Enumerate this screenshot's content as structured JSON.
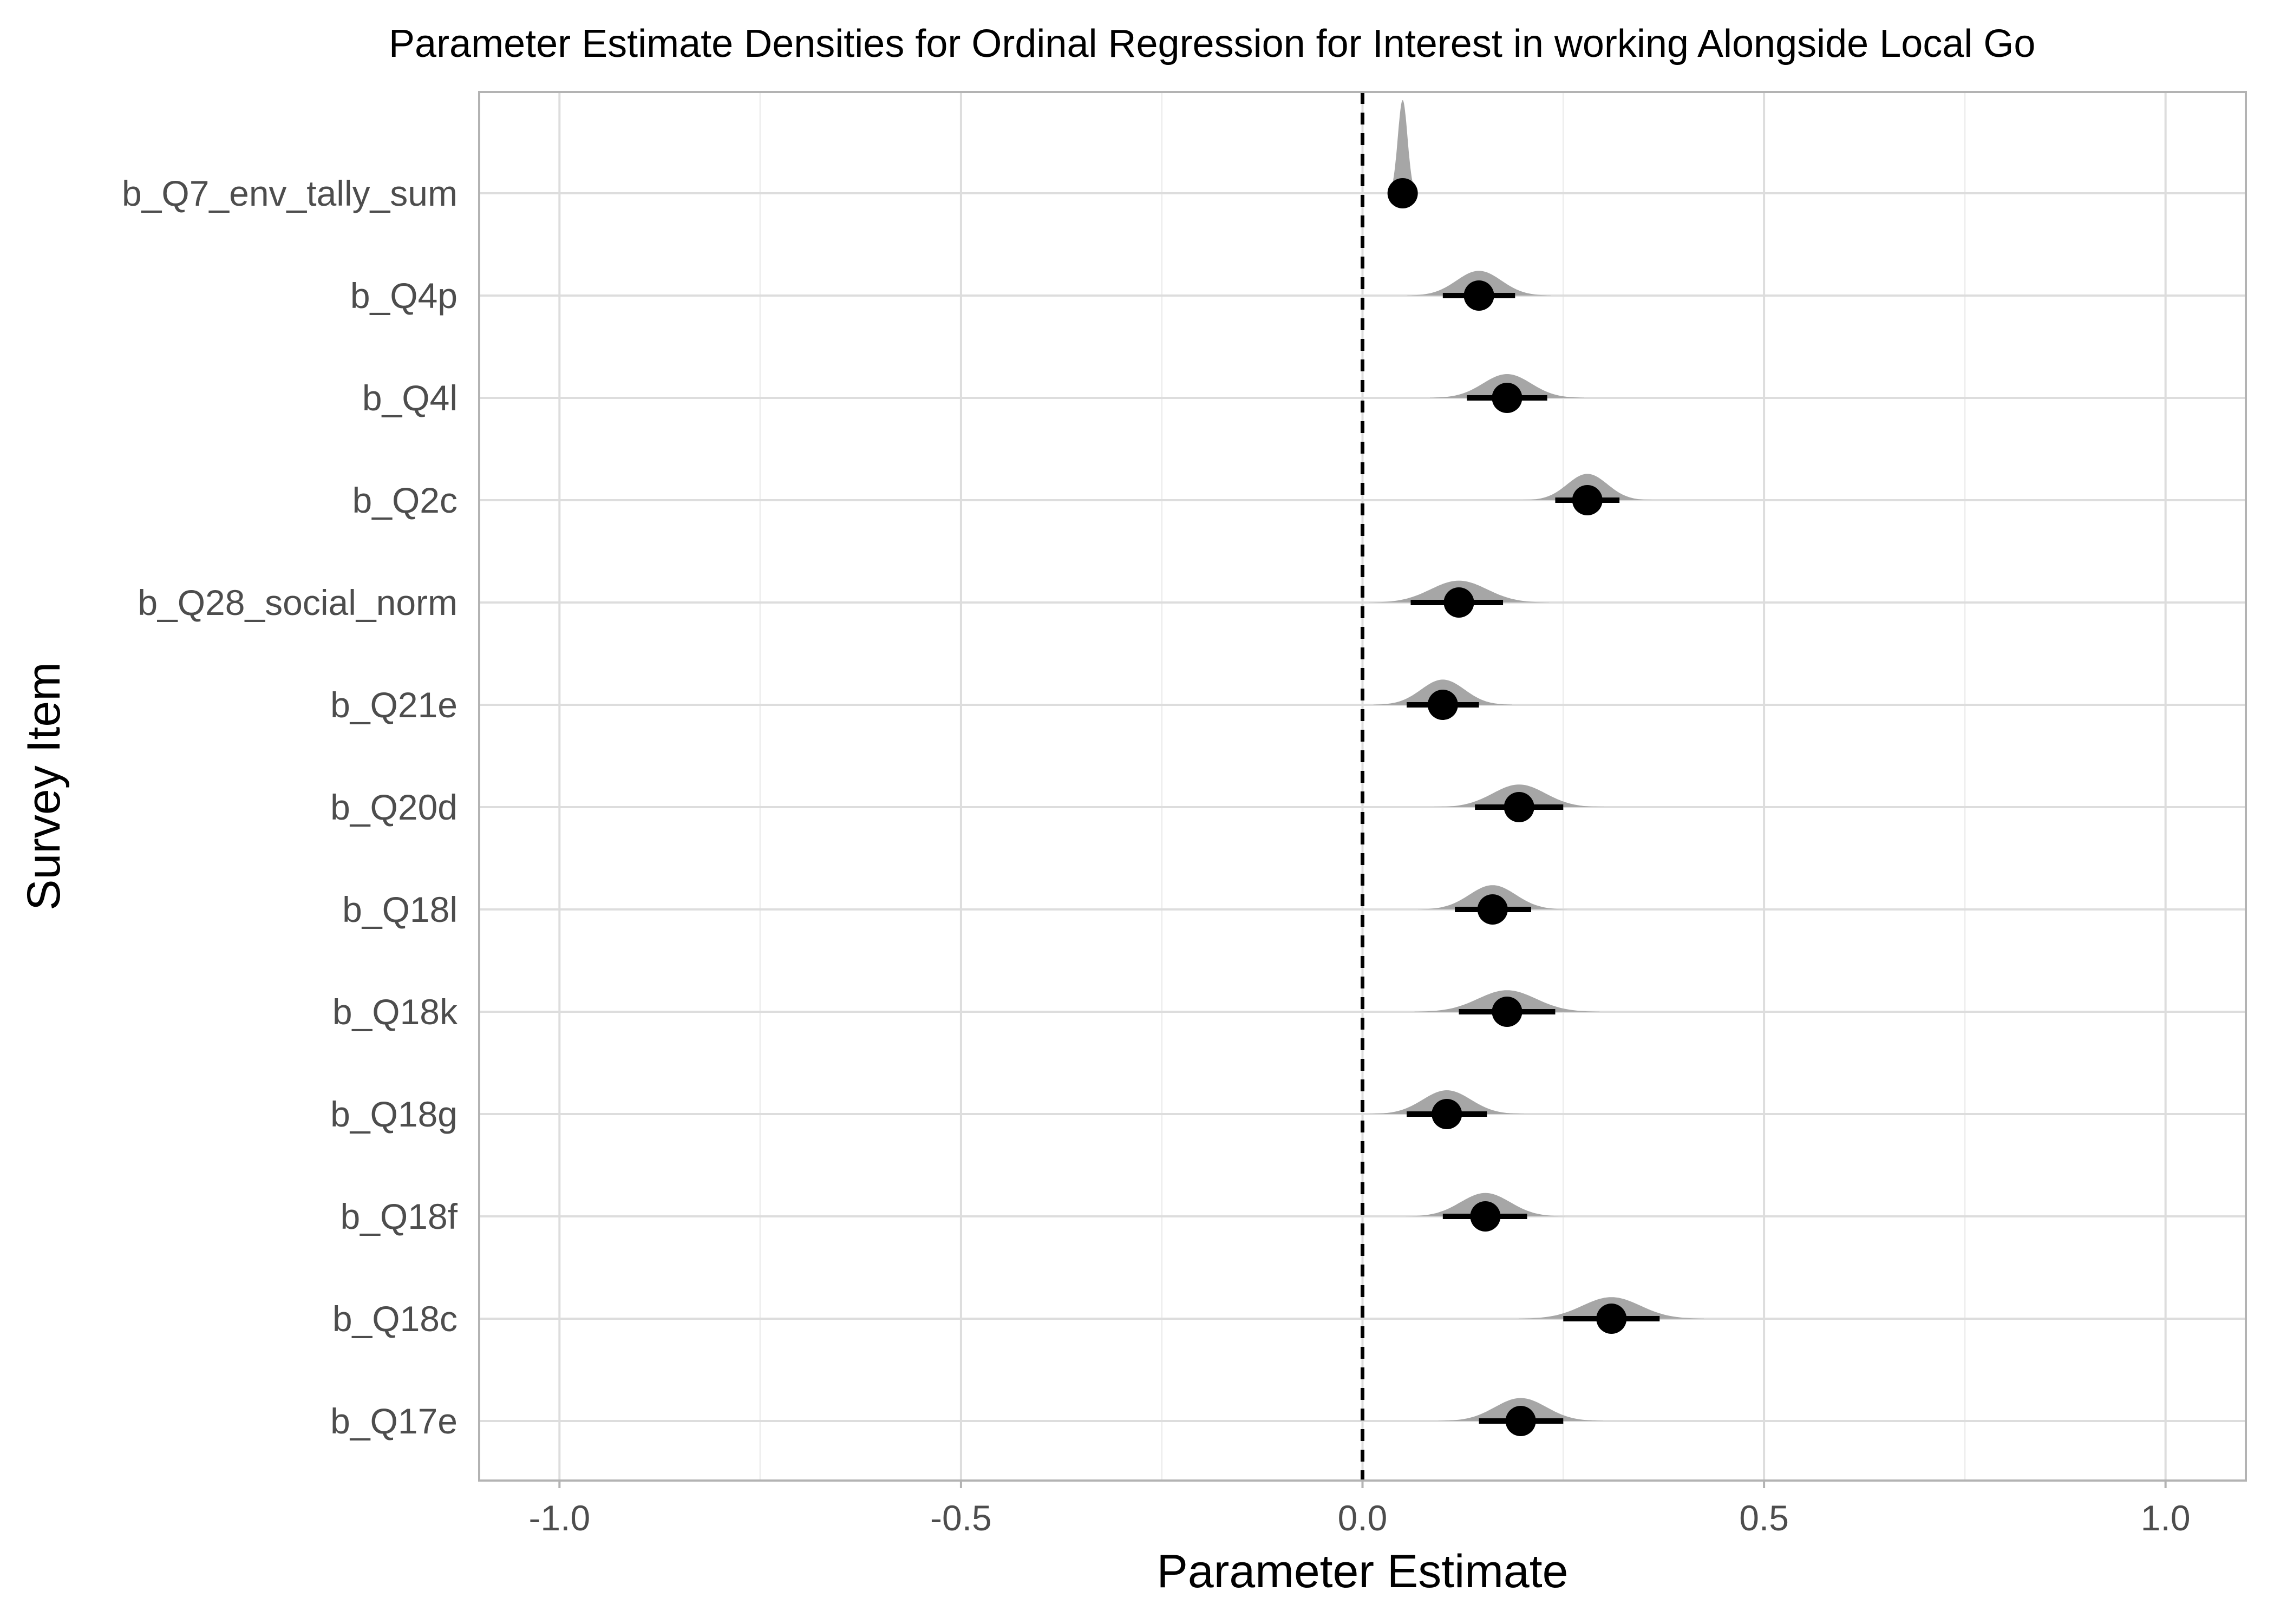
{
  "chart_data": {
    "type": "density-interval",
    "title": "Parameter Estimate Densities for Ordinal Regression for Interest in working Alongside Local Go",
    "xlabel": "Parameter Estimate",
    "ylabel": "Survey Item",
    "xlim": [
      -1.1,
      1.1
    ],
    "x_ticks": [
      -1.0,
      -0.5,
      0.0,
      0.5,
      1.0
    ],
    "x_tick_labels": [
      "-1.0",
      "-0.5",
      "0.0",
      "0.5",
      "1.0"
    ],
    "reference_line": {
      "x": 0.0,
      "style": "dashed"
    },
    "grid": true,
    "series": [
      {
        "label": "b_Q7_env_tally_sum",
        "estimate": 0.05,
        "lower": 0.045,
        "upper": 0.055,
        "sd": 0.006
      },
      {
        "label": "b_Q4p",
        "estimate": 0.145,
        "lower": 0.1,
        "upper": 0.19,
        "sd": 0.028
      },
      {
        "label": "b_Q4l",
        "estimate": 0.18,
        "lower": 0.13,
        "upper": 0.23,
        "sd": 0.03
      },
      {
        "label": "b_Q2c",
        "estimate": 0.28,
        "lower": 0.24,
        "upper": 0.32,
        "sd": 0.025
      },
      {
        "label": "b_Q28_social_norm",
        "estimate": 0.12,
        "lower": 0.06,
        "upper": 0.175,
        "sd": 0.035
      },
      {
        "label": "b_Q21e",
        "estimate": 0.1,
        "lower": 0.055,
        "upper": 0.145,
        "sd": 0.027
      },
      {
        "label": "b_Q20d",
        "estimate": 0.195,
        "lower": 0.14,
        "upper": 0.25,
        "sd": 0.033
      },
      {
        "label": "b_Q18l",
        "estimate": 0.162,
        "lower": 0.115,
        "upper": 0.21,
        "sd": 0.029
      },
      {
        "label": "b_Q18k",
        "estimate": 0.18,
        "lower": 0.12,
        "upper": 0.24,
        "sd": 0.036
      },
      {
        "label": "b_Q18g",
        "estimate": 0.105,
        "lower": 0.055,
        "upper": 0.155,
        "sd": 0.03
      },
      {
        "label": "b_Q18f",
        "estimate": 0.153,
        "lower": 0.1,
        "upper": 0.205,
        "sd": 0.031
      },
      {
        "label": "b_Q18c",
        "estimate": 0.31,
        "lower": 0.25,
        "upper": 0.37,
        "sd": 0.036
      },
      {
        "label": "b_Q17e",
        "estimate": 0.197,
        "lower": 0.145,
        "upper": 0.25,
        "sd": 0.032
      }
    ],
    "colors": {
      "density": "#a6a6a6",
      "point": "#000000",
      "interval": "#000000",
      "grid_major": "#dddddd",
      "grid_minor": "#eeeeee",
      "panel_border": "#b3b3b3",
      "reference_line": "#000000"
    }
  }
}
